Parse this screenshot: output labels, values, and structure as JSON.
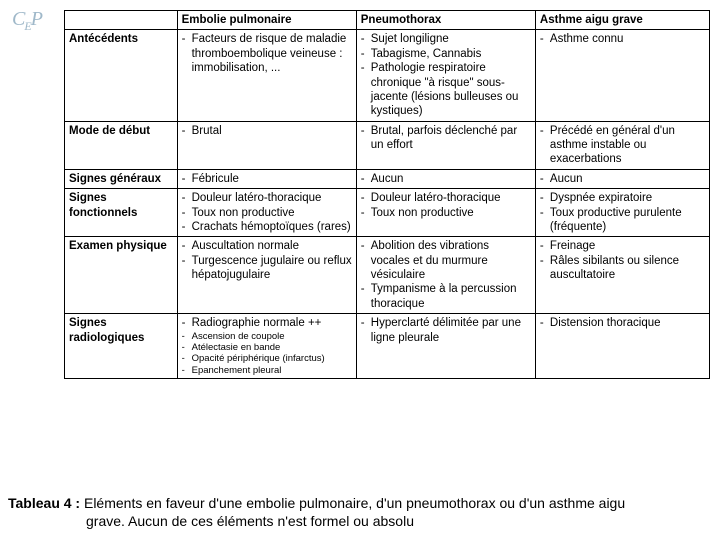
{
  "logo": "CEP",
  "columns": [
    "",
    "Embolie pulmonaire",
    "Pneumothorax",
    "Asthme aigu grave"
  ],
  "col_widths": [
    "110px",
    "175px",
    "175px",
    "170px"
  ],
  "rows": [
    {
      "header": "Antécédents",
      "cells": [
        [
          "Facteurs de risque de maladie thromboembolique veineuse : immobilisation, ..."
        ],
        [
          "Sujet longiligne",
          "Tabagisme, Cannabis",
          "Pathologie respiratoire chronique \"à risque\" sous-jacente (lésions bulleuses ou kystiques)"
        ],
        [
          "Asthme connu"
        ]
      ]
    },
    {
      "header": "Mode de début",
      "cells": [
        [
          "Brutal"
        ],
        [
          "Brutal, parfois déclenché par un effort"
        ],
        [
          "Précédé en général d'un asthme instable ou exacerbations"
        ]
      ]
    },
    {
      "header": "Signes généraux",
      "cells": [
        [
          "Fébricule"
        ],
        [
          "Aucun"
        ],
        [
          "Aucun"
        ]
      ]
    },
    {
      "header": "Signes fonctionnels",
      "cells": [
        [
          "Douleur latéro-thoracique",
          "Toux non productive",
          "Crachats hémoptoïques (rares)"
        ],
        [
          "Douleur latéro-thoracique",
          "Toux non productive"
        ],
        [
          "Dyspnée expiratoire",
          "Toux productive purulente (fréquente)"
        ]
      ]
    },
    {
      "header": "Examen physique",
      "cells": [
        [
          "Auscultation normale",
          "Turgescence jugulaire ou reflux hépatojugulaire"
        ],
        [
          "Abolition des vibrations vocales et du murmure vésiculaire",
          "Tympanisme à la percussion thoracique"
        ],
        [
          "Freinage",
          "Râles sibilants ou silence auscultatoire"
        ]
      ]
    },
    {
      "header": "Signes radiologiques",
      "cells": [
        [
          {
            "text": "Radiographie normale ++",
            "small": false
          },
          {
            "text": "Ascension de coupole",
            "small": true
          },
          {
            "text": "Atélectasie en bande",
            "small": true
          },
          {
            "text": "Opacité périphérique (infarctus)",
            "small": true
          },
          {
            "text": "Epanchement pleural",
            "small": true
          }
        ],
        [
          "Hyperclarté délimitée par une ligne pleurale"
        ],
        [
          "Distension thoracique"
        ]
      ]
    }
  ],
  "caption": {
    "label": "Tableau 4 :",
    "line1": "Eléments en faveur d'une embolie pulmonaire, d'un pneumothorax ou d'un asthme aigu",
    "line2": "grave. Aucun de ces éléments n'est formel ou absolu"
  }
}
